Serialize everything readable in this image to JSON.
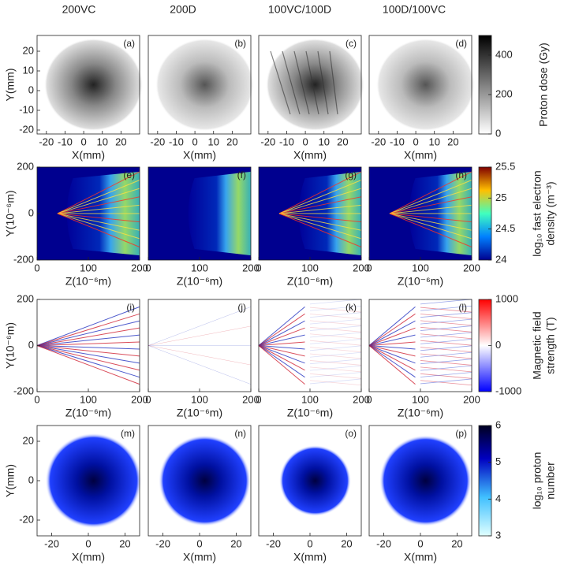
{
  "columns": [
    "200VC",
    "200D",
    "100VC/100D",
    "100D/100VC"
  ],
  "rows": [
    {
      "ylabel": "Y(mm)",
      "xlabel": "X(mm)",
      "xlim": [
        -25,
        30
      ],
      "ylim": [
        -22,
        28
      ],
      "xticks": [
        -20,
        -10,
        0,
        10,
        20
      ],
      "yticks": [
        -20,
        -10,
        0,
        10,
        20
      ],
      "panels": [
        "(a)",
        "(b)",
        "(c)",
        "(d)"
      ],
      "colorbar": {
        "label": [
          "Proton dose (Gy)"
        ],
        "lim": [
          0,
          500
        ],
        "ticks": [
          0,
          200,
          400
        ]
      }
    },
    {
      "ylabel": "Y(10⁻⁶m)",
      "xlabel": "Z(10⁻⁶m)",
      "xlim": [
        0,
        200
      ],
      "ylim": [
        -200,
        200
      ],
      "xticks": [
        0,
        100,
        200
      ],
      "yticks": [
        -200,
        0,
        200
      ],
      "panels": [
        "(e)",
        "(f)",
        "(g)",
        "(h)"
      ],
      "colorbar": {
        "label": [
          "log₁₀ fast electron",
          "density (m⁻³)"
        ],
        "lim": [
          24,
          25.5
        ],
        "ticks": [
          24,
          24.5,
          25,
          25.5
        ]
      }
    },
    {
      "ylabel": "Y(10⁻⁶m)",
      "xlabel": "Z(10⁻⁶m)",
      "xlim": [
        0,
        200
      ],
      "ylim": [
        -200,
        200
      ],
      "xticks": [
        0,
        100,
        200
      ],
      "yticks": [
        -200,
        0,
        200
      ],
      "panels": [
        "(i)",
        "(j)",
        "(k)",
        "(l)"
      ],
      "colorbar": {
        "label": [
          "Magnetic field",
          "strength (T)"
        ],
        "lim": [
          -1000,
          1000
        ],
        "ticks": [
          -1000,
          0,
          1000
        ]
      }
    },
    {
      "ylabel": "Y(mm)",
      "xlabel": "X(mm)",
      "xlim": [
        -28,
        28
      ],
      "ylim": [
        -28,
        28
      ],
      "xticks": [
        -20,
        0,
        20
      ],
      "yticks": [
        -20,
        0,
        20
      ],
      "panels": [
        "(m)",
        "(n)",
        "(o)",
        "(p)"
      ],
      "colorbar": {
        "label": [
          "log₁₀ proton",
          "number"
        ],
        "lim": [
          3,
          6
        ],
        "ticks": [
          3,
          4,
          5,
          6
        ]
      }
    }
  ]
}
